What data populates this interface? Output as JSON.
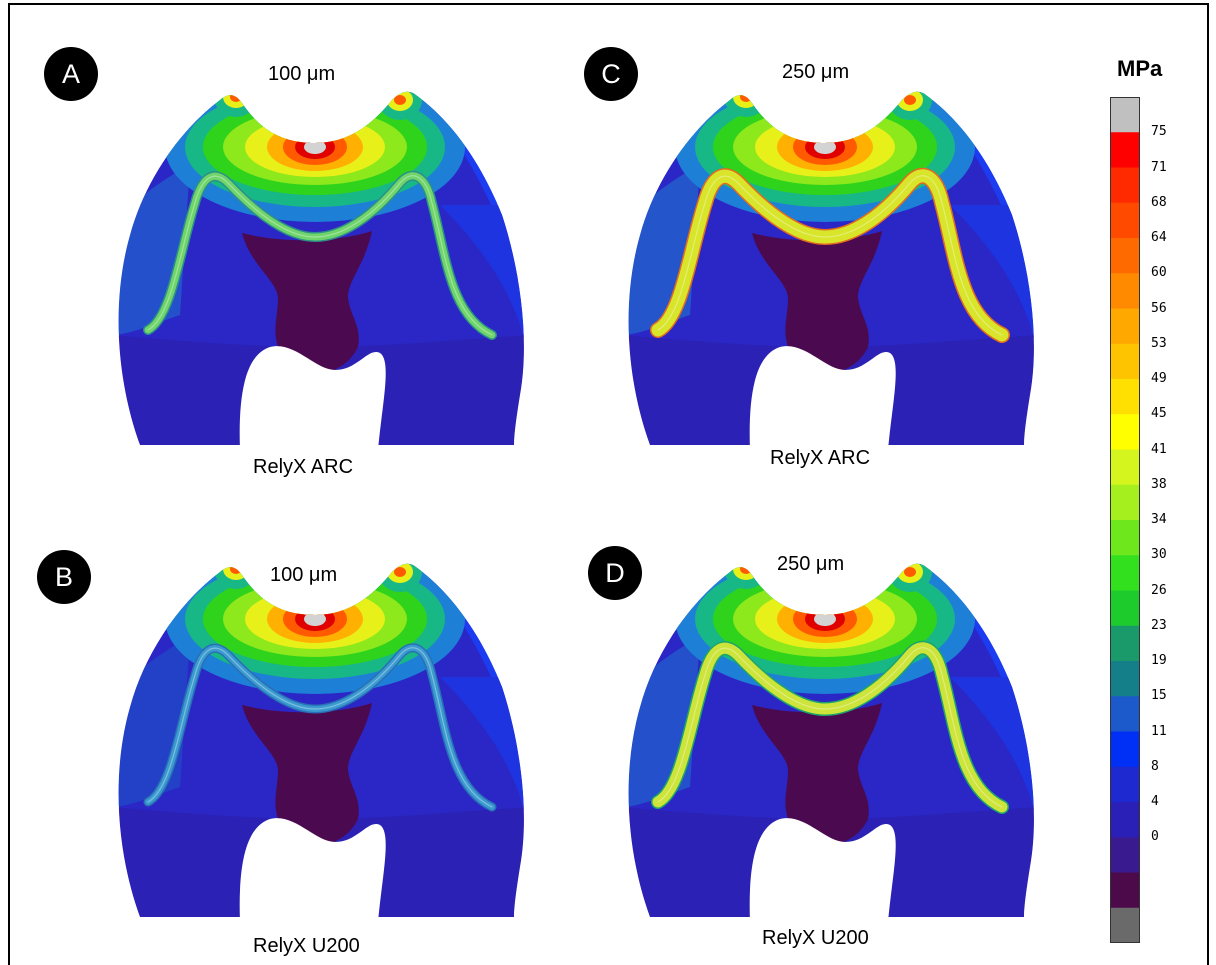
{
  "panels": [
    {
      "id": "a",
      "label": "A",
      "thickness": "100 μm",
      "cement": "RelyX ARC",
      "cementLayer": 7,
      "cementColor": "#6fd56a",
      "cementEdge": "#2e8f8a",
      "shadow": "#1f73cf"
    },
    {
      "id": "b",
      "label": "B",
      "thickness": "100 μm",
      "cement": "RelyX U200",
      "cementLayer": 6,
      "cementColor": "#3b9bd0",
      "cementEdge": "#2a6fb5",
      "shadow": "#1e58c8"
    },
    {
      "id": "c",
      "label": "C",
      "thickness": "250 μm",
      "cement": "RelyX ARC",
      "cementLayer": 13,
      "cementColor": "#d8e52a",
      "cementEdge": "#e36b1f",
      "shadow": "#1f7ccf"
    },
    {
      "id": "d",
      "label": "D",
      "thickness": "250 μm",
      "cement": "RelyX U200",
      "cementLayer": 11,
      "cementColor": "#cde43a",
      "cementEdge": "#1ea46b",
      "shadow": "#1f73cf"
    }
  ],
  "scale": {
    "unit": "MPa",
    "ticks": [
      "75",
      "71",
      "68",
      "64",
      "60",
      "56",
      "53",
      "49",
      "45",
      "41",
      "38",
      "34",
      "30",
      "26",
      "23",
      "19",
      "15",
      "11",
      "8",
      "4",
      "0"
    ],
    "colors": [
      "#c0c0c0",
      "#ff0000",
      "#ff2a00",
      "#ff4a00",
      "#ff6a00",
      "#ff8a00",
      "#ffa800",
      "#ffc400",
      "#ffe000",
      "#ffff00",
      "#d4f51e",
      "#a6ef1e",
      "#6ee81c",
      "#32e01e",
      "#1ecb2c",
      "#1a9a6a",
      "#147f88",
      "#1c5acb",
      "#0030f5",
      "#1e2ad0",
      "#2a20b8",
      "#3a1a8f",
      "#4c0a4a",
      "#6a6a6a"
    ]
  }
}
